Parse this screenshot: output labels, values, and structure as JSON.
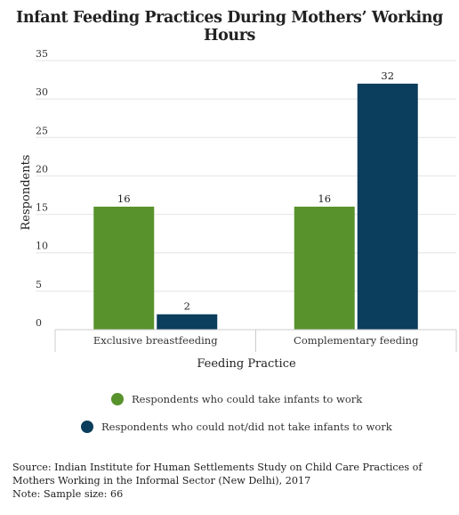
{
  "title": "Infant Feeding Practices During Mothers’ Working Hours",
  "source": {
    "line1": "Source: Indian Institute for Human Settlements Study on Child Care Practices of Mothers Working in the Informal Sector (New Delhi), 2017",
    "note": "Note: Sample size: 66"
  },
  "colors": {
    "series1": "#58922c",
    "series2": "#0b3d5c",
    "grid": "#e4e4e4",
    "axis": "#cccccc"
  },
  "chart_data": {
    "type": "bar",
    "title": "Infant Feeding Practices During Mothers’ Working Hours",
    "xlabel": "Feeding Practice",
    "ylabel": "Respondents",
    "categories": [
      "Exclusive breastfeeding",
      "Complementary feeding"
    ],
    "series": [
      {
        "name": "Respondents who could take infants to work",
        "values": [
          16,
          16
        ]
      },
      {
        "name": "Respondents who could not/did not take infants to work",
        "values": [
          2,
          32
        ]
      }
    ],
    "ylim": [
      0,
      35
    ],
    "yticks": [
      0,
      5,
      10,
      15,
      20,
      25,
      30,
      35
    ],
    "grid": true,
    "legend_position": "bottom",
    "data_labels": true
  }
}
